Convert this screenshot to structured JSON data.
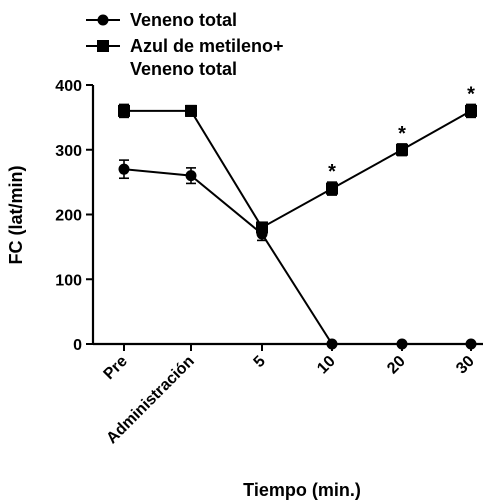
{
  "chart_data": {
    "type": "line",
    "categories": [
      "Pre",
      "Administración",
      "5",
      "10",
      "20",
      "30"
    ],
    "xlabel": "Tiempo (min.)",
    "ylabel": "FC (lat/min)",
    "ylim": [
      0,
      400
    ],
    "yticks": [
      0,
      100,
      200,
      300,
      400
    ],
    "legend_position": "top-left",
    "series": [
      {
        "name": "Veneno total",
        "marker": "circle",
        "values": [
          270,
          260,
          170,
          0,
          0,
          0
        ],
        "errors": [
          14,
          12,
          10,
          0,
          0,
          0
        ]
      },
      {
        "name": "Azul de metileno+ Veneno total",
        "name_lines": [
          "Azul de metileno+",
          "Veneno total"
        ],
        "marker": "square",
        "values": [
          360,
          360,
          180,
          240,
          300,
          360
        ],
        "errors": [
          10,
          8,
          8,
          10,
          9,
          10
        ]
      }
    ],
    "annotations": [
      {
        "category": "10",
        "text": "*"
      },
      {
        "category": "20",
        "text": "*"
      },
      {
        "category": "30",
        "text": "*"
      }
    ]
  }
}
